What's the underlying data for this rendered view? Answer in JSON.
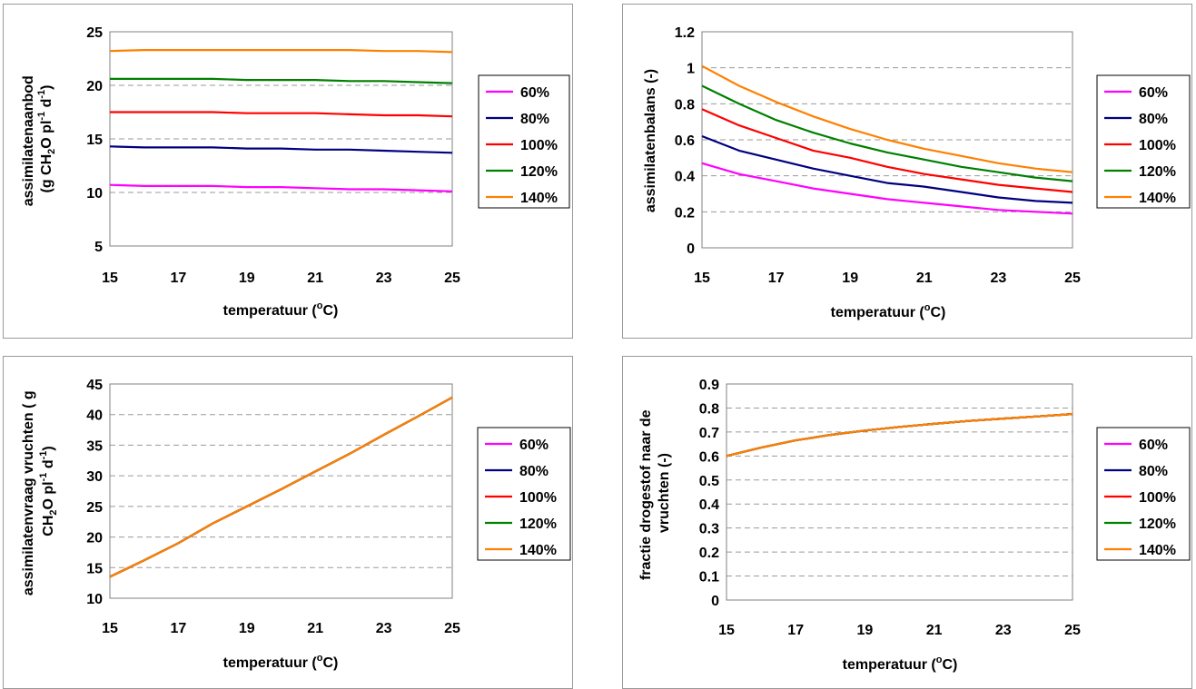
{
  "legend_entries": [
    "60%",
    "80%",
    "100%",
    "120%",
    "140%"
  ],
  "colors": {
    "60%": "#ff00ff",
    "80%": "#000080",
    "100%": "#ff0000",
    "120%": "#008000",
    "140%": "#ff8000",
    "grid": "#9a9a9a",
    "frame": "#808080"
  },
  "chart_data": [
    {
      "type": "line",
      "ylabel_lines": [
        "assimilatenaanbod",
        "(g CH2O pl-1 d-1)"
      ],
      "xlabel": "temperatuur (°C)",
      "xlim": [
        15,
        25
      ],
      "ylim": [
        5,
        25
      ],
      "x_ticks": [
        "15",
        "17",
        "19",
        "21",
        "23",
        "25"
      ],
      "y_ticks": [
        "5",
        "10",
        "15",
        "20",
        "25"
      ],
      "grid": "horizontal dashed",
      "legend_position": "right",
      "x": [
        15,
        16,
        17,
        18,
        19,
        20,
        21,
        22,
        23,
        24,
        25
      ],
      "series": [
        {
          "name": "60%",
          "values": [
            10.7,
            10.6,
            10.6,
            10.6,
            10.5,
            10.5,
            10.4,
            10.3,
            10.3,
            10.2,
            10.1
          ]
        },
        {
          "name": "80%",
          "values": [
            14.3,
            14.2,
            14.2,
            14.2,
            14.1,
            14.1,
            14.0,
            14.0,
            13.9,
            13.8,
            13.7
          ]
        },
        {
          "name": "100%",
          "values": [
            17.5,
            17.5,
            17.5,
            17.5,
            17.4,
            17.4,
            17.4,
            17.3,
            17.2,
            17.2,
            17.1
          ]
        },
        {
          "name": "120%",
          "values": [
            20.6,
            20.6,
            20.6,
            20.6,
            20.5,
            20.5,
            20.5,
            20.4,
            20.4,
            20.3,
            20.2
          ]
        },
        {
          "name": "140%",
          "values": [
            23.2,
            23.3,
            23.3,
            23.3,
            23.3,
            23.3,
            23.3,
            23.3,
            23.2,
            23.2,
            23.1
          ]
        }
      ]
    },
    {
      "type": "line",
      "ylabel_lines": [
        "assimilatenbalans (-)"
      ],
      "xlabel": "temperatuur (°C)",
      "xlim": [
        15,
        25
      ],
      "ylim": [
        0,
        1.2
      ],
      "x_ticks": [
        "15",
        "17",
        "19",
        "21",
        "23",
        "25"
      ],
      "y_ticks": [
        "0",
        "0.2",
        "0.4",
        "0.6",
        "0.8",
        "1",
        "1.2"
      ],
      "grid": "horizontal dashed",
      "legend_position": "right",
      "x": [
        15,
        16,
        17,
        18,
        19,
        20,
        21,
        22,
        23,
        24,
        25
      ],
      "series": [
        {
          "name": "60%",
          "values": [
            0.47,
            0.41,
            0.37,
            0.33,
            0.3,
            0.27,
            0.25,
            0.23,
            0.21,
            0.2,
            0.19
          ]
        },
        {
          "name": "80%",
          "values": [
            0.62,
            0.54,
            0.49,
            0.44,
            0.4,
            0.36,
            0.34,
            0.31,
            0.28,
            0.26,
            0.25
          ]
        },
        {
          "name": "100%",
          "values": [
            0.77,
            0.68,
            0.61,
            0.54,
            0.5,
            0.45,
            0.41,
            0.38,
            0.35,
            0.33,
            0.31
          ]
        },
        {
          "name": "120%",
          "values": [
            0.9,
            0.8,
            0.71,
            0.64,
            0.58,
            0.53,
            0.49,
            0.45,
            0.42,
            0.39,
            0.37
          ]
        },
        {
          "name": "140%",
          "values": [
            1.01,
            0.9,
            0.81,
            0.73,
            0.66,
            0.6,
            0.55,
            0.51,
            0.47,
            0.44,
            0.42
          ]
        }
      ]
    },
    {
      "type": "line",
      "ylabel_lines": [
        "assimilatenvraag vruchten ( g",
        "CH2O pl-1 d-1)"
      ],
      "xlabel": "temperatuur (°C)",
      "xlim": [
        15,
        25
      ],
      "ylim": [
        10,
        45
      ],
      "x_ticks": [
        "15",
        "17",
        "19",
        "21",
        "23",
        "25"
      ],
      "y_ticks": [
        "10",
        "15",
        "20",
        "25",
        "30",
        "35",
        "40",
        "45"
      ],
      "grid": "horizontal dashed",
      "legend_position": "right",
      "x": [
        15,
        16,
        17,
        18,
        19,
        20,
        21,
        22,
        23,
        24,
        25
      ],
      "series": [
        {
          "name": "60%",
          "values": [
            13.5,
            16.2,
            19.0,
            22.2,
            25.0,
            27.8,
            30.7,
            33.6,
            36.7,
            39.7,
            42.8
          ]
        },
        {
          "name": "80%",
          "values": [
            13.5,
            16.2,
            19.0,
            22.2,
            25.0,
            27.8,
            30.7,
            33.6,
            36.7,
            39.7,
            42.8
          ]
        },
        {
          "name": "100%",
          "values": [
            13.5,
            16.2,
            19.0,
            22.2,
            25.0,
            27.8,
            30.7,
            33.6,
            36.7,
            39.7,
            42.8
          ]
        },
        {
          "name": "120%",
          "values": [
            13.5,
            16.2,
            19.0,
            22.2,
            25.0,
            27.8,
            30.7,
            33.6,
            36.7,
            39.7,
            42.8
          ]
        },
        {
          "name": "140%",
          "values": [
            13.5,
            16.2,
            19.0,
            22.2,
            25.0,
            27.8,
            30.7,
            33.6,
            36.7,
            39.7,
            42.8
          ]
        }
      ]
    },
    {
      "type": "line",
      "ylabel_lines": [
        "fractie drogestof naar de",
        "vruchten (-)"
      ],
      "xlabel": "temperatuur (°C)",
      "xlim": [
        15,
        25
      ],
      "ylim": [
        0,
        0.9
      ],
      "x_ticks": [
        "15",
        "17",
        "19",
        "21",
        "23",
        "25"
      ],
      "y_ticks": [
        "0",
        "0.1",
        "0.2",
        "0.3",
        "0.4",
        "0.5",
        "0.6",
        "0.7",
        "0.8",
        "0.9"
      ],
      "grid": "horizontal dashed",
      "legend_position": "right",
      "x": [
        15,
        16,
        17,
        18,
        19,
        20,
        21,
        22,
        23,
        24,
        25
      ],
      "series": [
        {
          "name": "60%",
          "values": [
            0.6,
            0.635,
            0.665,
            0.688,
            0.706,
            0.721,
            0.734,
            0.746,
            0.756,
            0.765,
            0.775
          ]
        },
        {
          "name": "80%",
          "values": [
            0.6,
            0.635,
            0.665,
            0.688,
            0.706,
            0.721,
            0.734,
            0.746,
            0.756,
            0.765,
            0.775
          ]
        },
        {
          "name": "100%",
          "values": [
            0.6,
            0.635,
            0.665,
            0.688,
            0.706,
            0.721,
            0.734,
            0.746,
            0.756,
            0.765,
            0.775
          ]
        },
        {
          "name": "120%",
          "values": [
            0.6,
            0.635,
            0.665,
            0.688,
            0.706,
            0.721,
            0.734,
            0.746,
            0.756,
            0.765,
            0.775
          ]
        },
        {
          "name": "140%",
          "values": [
            0.6,
            0.635,
            0.665,
            0.688,
            0.706,
            0.721,
            0.734,
            0.746,
            0.756,
            0.765,
            0.775
          ]
        }
      ]
    }
  ]
}
